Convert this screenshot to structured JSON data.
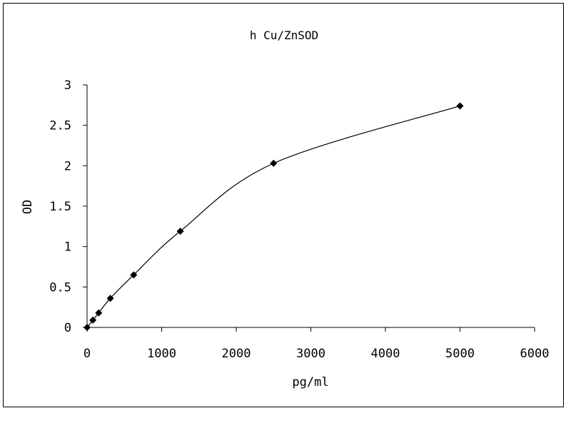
{
  "chart_data": {
    "type": "scatter",
    "title": "h Cu/ZnSOD",
    "xlabel": "pg/ml",
    "ylabel": "OD",
    "xlim": [
      0,
      6000
    ],
    "ylim": [
      0,
      3
    ],
    "xticks": [
      0,
      1000,
      2000,
      3000,
      4000,
      5000,
      6000
    ],
    "yticks": [
      0,
      0.5,
      1,
      1.5,
      2,
      2.5,
      3
    ],
    "xtick_labels": [
      "0",
      "1000",
      "2000",
      "3000",
      "4000",
      "5000",
      "6000"
    ],
    "ytick_labels": [
      "0",
      "0.5",
      "1",
      "1.5",
      "2",
      "2.5",
      "3"
    ],
    "grid": false,
    "marker": "diamond",
    "line": "smoothed",
    "series": [
      {
        "x": [
          0,
          78,
          156,
          312,
          625,
          1250,
          2500,
          5000
        ],
        "y": [
          0.0,
          0.09,
          0.18,
          0.36,
          0.65,
          1.19,
          2.03,
          2.74
        ]
      }
    ]
  }
}
